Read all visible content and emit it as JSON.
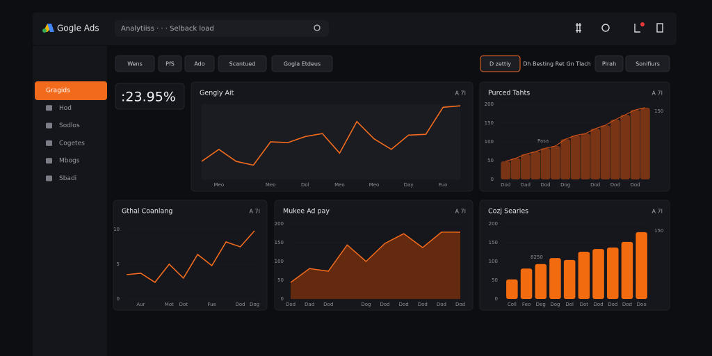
{
  "header": {
    "logo": "Gogle Ads",
    "search": "Analytiiss · · · Selback load"
  },
  "sidebar": [
    "Gragids",
    "Hod",
    "Sodlos",
    "Cogetes",
    "Mbogs",
    "Sbadi"
  ],
  "toolbar": {
    "left": [
      "Wens",
      "PfS",
      "Ado",
      "Scantued",
      "Gogla Etdeus"
    ],
    "right": [
      "D zettiy",
      "Dh Besting Ret Gn Tlach",
      "Plrah",
      "Sonifiurs"
    ]
  },
  "kpi": ":23.95%",
  "panels": [
    {
      "title": "Gengly Ait",
      "corner": "A 7I",
      "chart": {
        "type": "line",
        "color": "#f26b1d",
        "categories": [
          null,
          "Meo",
          null,
          null,
          "Meo",
          null,
          "Dol",
          null,
          "Meo",
          null,
          "Meo",
          null,
          "Day",
          null,
          "Fuo",
          null
        ],
        "values": [
          24,
          40,
          24,
          19,
          50,
          49,
          57,
          61,
          35,
          77,
          54,
          40,
          59,
          60,
          96,
          98
        ],
        "ylim": [
          0,
          100
        ],
        "yticks": []
      }
    },
    {
      "title": "Purced Tahts",
      "corner": "A 7I",
      "annotations": [
        "Pasa",
        "150"
      ],
      "chart": {
        "type": "bar",
        "color": "#8a3a14",
        "categories": [
          "Dod",
          null,
          "Dad",
          null,
          "Dod",
          null,
          "Dog",
          null,
          null,
          "Dod",
          null,
          "Dod",
          null,
          "Dod",
          null
        ],
        "values": [
          48,
          56,
          67,
          74,
          83,
          89,
          107,
          117,
          122,
          135,
          144,
          159,
          172,
          185,
          191
        ],
        "ylim": [
          0,
          200
        ],
        "yticks": [
          0,
          50,
          100,
          150,
          200
        ]
      }
    },
    {
      "title": "Gthal Coanlang",
      "corner": "A 7I",
      "chart": {
        "type": "line",
        "color": "#f26b1d",
        "categories": [
          null,
          "Aur",
          null,
          "Mot",
          "Dot",
          null,
          "Fue",
          null,
          "Dod",
          "Dog"
        ],
        "values": [
          3.5,
          3.7,
          2.4,
          5,
          3,
          6.4,
          4.8,
          8.2,
          7.5,
          9.8
        ],
        "ylim": [
          0,
          10
        ],
        "yticks": [
          0,
          5,
          10
        ]
      }
    },
    {
      "title": "Mukee Ad pay",
      "corner": "A 7I",
      "chart": {
        "type": "area",
        "color": "#f26b1d",
        "categories": [
          "Dod",
          "Dad",
          "Dod",
          null,
          "Dog",
          "Dod",
          "Dod",
          "Dod",
          "Dod",
          "Dod"
        ],
        "values": [
          44,
          81,
          74,
          144,
          100,
          148,
          174,
          137,
          178,
          178
        ],
        "ylim": [
          0,
          200
        ],
        "yticks": [
          0,
          50,
          100,
          150,
          200
        ]
      }
    },
    {
      "title": "Cozj Searies",
      "corner": "A 7I",
      "annotations": [
        "8250",
        "150"
      ],
      "chart": {
        "type": "bar",
        "color": "#f26b0f",
        "categories": [
          "Coll",
          "Feo",
          "Deg",
          "Dog",
          "Dol",
          "Dot",
          "Dod",
          "Dod",
          "Dod",
          "Doo"
        ],
        "values": [
          52,
          81,
          93,
          109,
          104,
          126,
          133,
          137,
          152,
          178
        ],
        "ylim": [
          0,
          200
        ],
        "yticks": [
          0,
          50,
          100,
          150,
          200
        ]
      }
    }
  ]
}
